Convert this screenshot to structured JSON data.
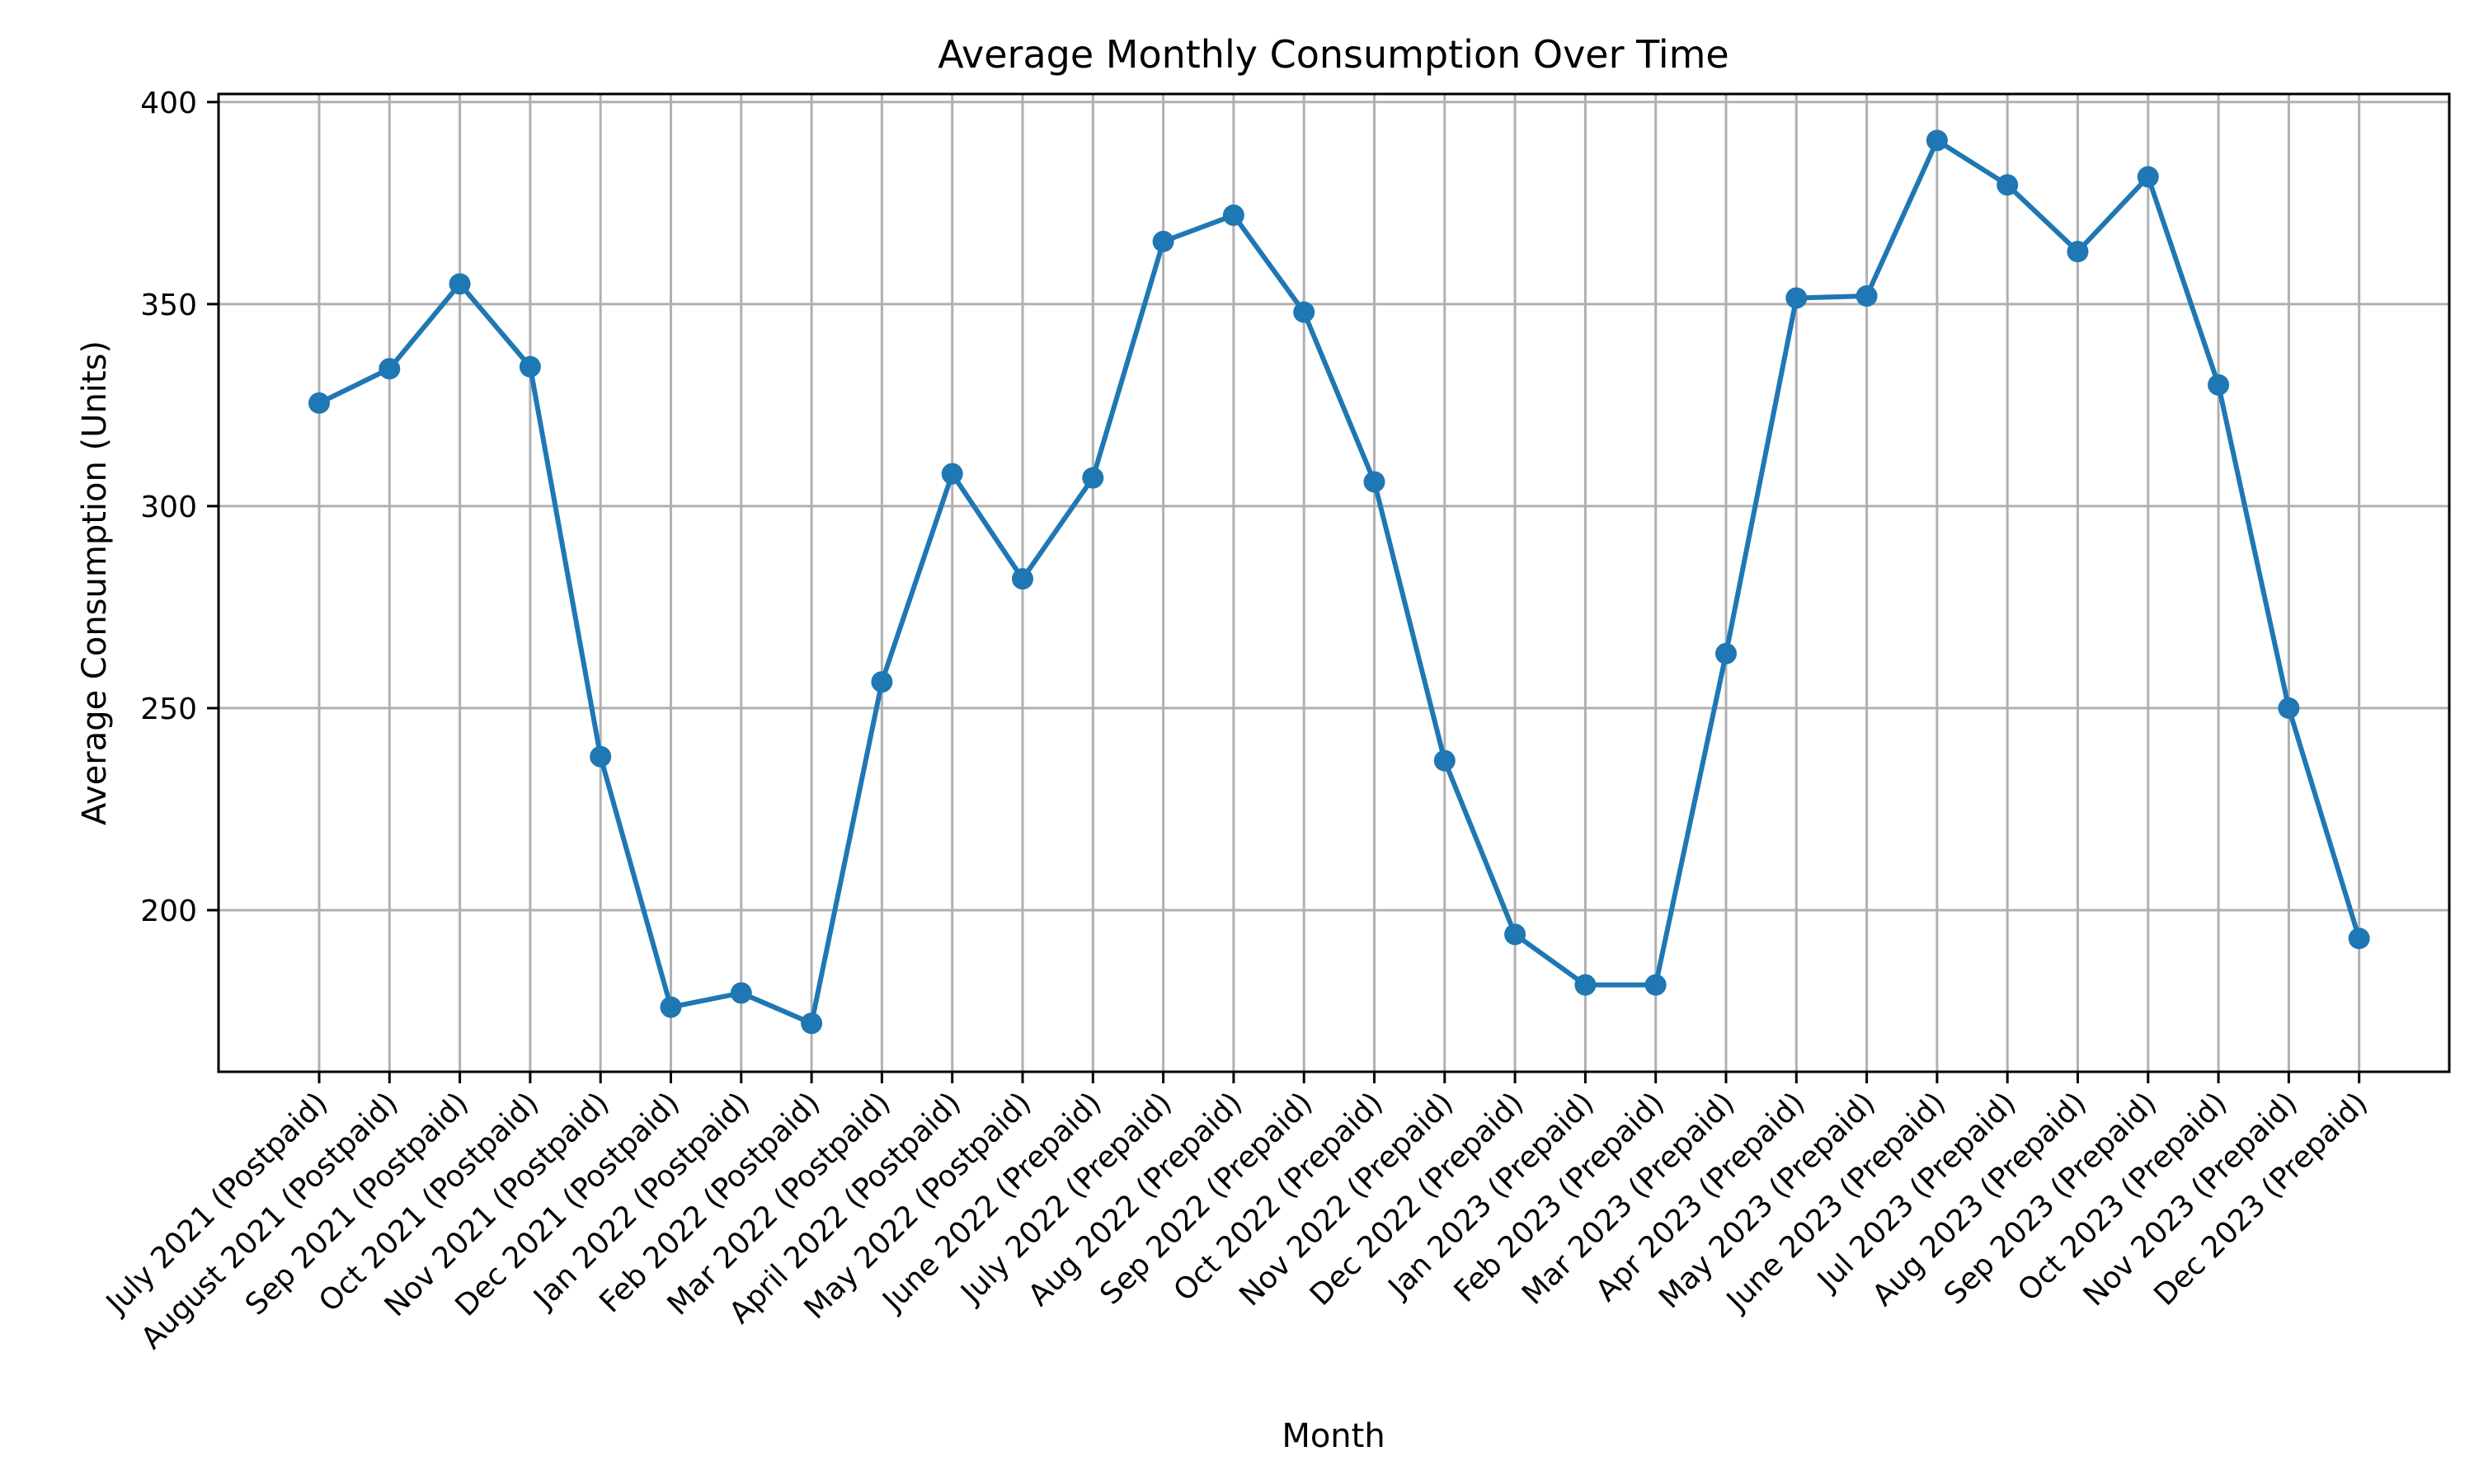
{
  "chart_data": {
    "type": "line",
    "title": "Average Monthly Consumption Over Time",
    "xlabel": "Month",
    "ylabel": "Average Consumption (Units)",
    "ylim": [
      160,
      402
    ],
    "yticks": [
      200,
      250,
      300,
      350,
      400
    ],
    "grid": true,
    "color": "#1f77b4",
    "categories": [
      "July 2021 (Postpaid)",
      "August 2021 (Postpaid)",
      "Sep 2021 (Postpaid)",
      "Oct 2021 (Postpaid)",
      "Nov 2021 (Postpaid)",
      "Dec 2021 (Postpaid)",
      "Jan 2022 (Postpaid)",
      "Feb 2022 (Postpaid)",
      "Mar 2022 (Postpaid)",
      "April 2022 (Postpaid)",
      "May 2022 (Postpaid)",
      "June 2022 (Prepaid)",
      "July 2022 (Prepaid)",
      "Aug 2022 (Prepaid)",
      "Sep 2022 (Prepaid)",
      "Oct 2022 (Prepaid)",
      "Nov 2022 (Prepaid)",
      "Dec 2022 (Prepaid)",
      "Jan 2023 (Prepaid)",
      "Feb 2023 (Prepaid)",
      "Mar 2023 (Prepaid)",
      "Apr 2023 (Prepaid)",
      "May 2023 (Prepaid)",
      "June 2023 (Prepaid)",
      "Jul 2023 (Prepaid)",
      "Aug 2023 (Prepaid)",
      "Sep 2023 (Prepaid)",
      "Oct 2023 (Prepaid)",
      "Nov 2023 (Prepaid)",
      "Dec 2023 (Prepaid)"
    ],
    "values": [
      325.5,
      334,
      355,
      334.5,
      238,
      176,
      179.5,
      172,
      256.5,
      308,
      282,
      307,
      365.5,
      372,
      348,
      306,
      237,
      194,
      181.5,
      181.5,
      263.5,
      351.5,
      352,
      390.5,
      379.5,
      363,
      381.5,
      330,
      250,
      193
    ]
  }
}
